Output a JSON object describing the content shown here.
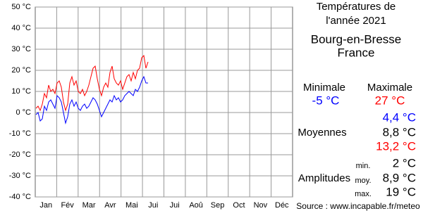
{
  "chart_data": {
    "type": "line",
    "categories": [
      "Jan",
      "Fév",
      "Mar",
      "Avr",
      "Mai",
      "Jui",
      "Jui",
      "Aoû",
      "Sep",
      "Oct",
      "Nov",
      "Déc"
    ],
    "xlim": [
      0,
      365
    ],
    "x": [
      1,
      4,
      7,
      10,
      13,
      16,
      19,
      22,
      25,
      28,
      31,
      34,
      37,
      40,
      43,
      46,
      49,
      52,
      55,
      58,
      61,
      64,
      67,
      70,
      73,
      76,
      79,
      82,
      85,
      88,
      91,
      94,
      97,
      100,
      103,
      106,
      109,
      112,
      115,
      118,
      121,
      124,
      127,
      130,
      133,
      136,
      139,
      142,
      145,
      148,
      151,
      154,
      157,
      160
    ],
    "series": [
      {
        "color": "#ff0000",
        "values": [
          2,
          3,
          1,
          4,
          9,
          7,
          13,
          10,
          11,
          9,
          14,
          15,
          12,
          5,
          1,
          4,
          14,
          17,
          13,
          15,
          10,
          9,
          11,
          8,
          10,
          13,
          17,
          21,
          22,
          16,
          11,
          8,
          12,
          14,
          12,
          19,
          22,
          16,
          14,
          13,
          15,
          11,
          14,
          17,
          18,
          15,
          19,
          16,
          20,
          21,
          26,
          27,
          21,
          24
        ]
      },
      {
        "color": "#0000ff",
        "values": [
          -1,
          0,
          -4,
          -3,
          3,
          1,
          5,
          6,
          4,
          2,
          8,
          7,
          5,
          0,
          -5,
          -2,
          4,
          6,
          3,
          5,
          2,
          1,
          3,
          4,
          2,
          3,
          5,
          7,
          6,
          4,
          1,
          -2,
          0,
          2,
          4,
          6,
          5,
          8,
          6,
          7,
          5,
          6,
          8,
          9,
          10,
          9,
          8,
          11,
          10,
          12,
          15,
          17,
          14,
          14
        ]
      }
    ],
    "ylim": [
      -40,
      50
    ],
    "yticks": [
      {
        "value": 50,
        "label": "50 °C"
      },
      {
        "value": 40,
        "label": "40 °C"
      },
      {
        "value": 30,
        "label": "30 °C"
      },
      {
        "value": 20,
        "label": "20 °C"
      },
      {
        "value": 10,
        "label": "10 °C"
      },
      {
        "value": 0,
        "label": "0 °C"
      },
      {
        "value": -10,
        "label": "-10 °C"
      },
      {
        "value": -20,
        "label": "-20 °C"
      },
      {
        "value": -30,
        "label": "-30 °C"
      },
      {
        "value": -40,
        "label": "-40 °C"
      }
    ],
    "grid": true
  },
  "panel": {
    "title_line1": "Températures de",
    "title_line2": "l'année 2021",
    "city": "Bourg-en-Bresse",
    "country": "France",
    "min_label": "Minimale",
    "max_label": "Maximale",
    "min_value": "-5 °C",
    "max_value": "27 °C",
    "means_label": "Moyennes",
    "mean_min": "4,4 °C",
    "mean_all": "8,8 °C",
    "mean_max": "13,2 °C",
    "amplitudes_label": "Amplitudes",
    "amp_min_label": "min.",
    "amp_min": "2 °C",
    "amp_mean_label": "moy.",
    "amp_mean": "8,9 °C",
    "amp_max_label": "max.",
    "amp_max": "19 °C",
    "source": "Source : www.incapable.fr/meteo"
  }
}
